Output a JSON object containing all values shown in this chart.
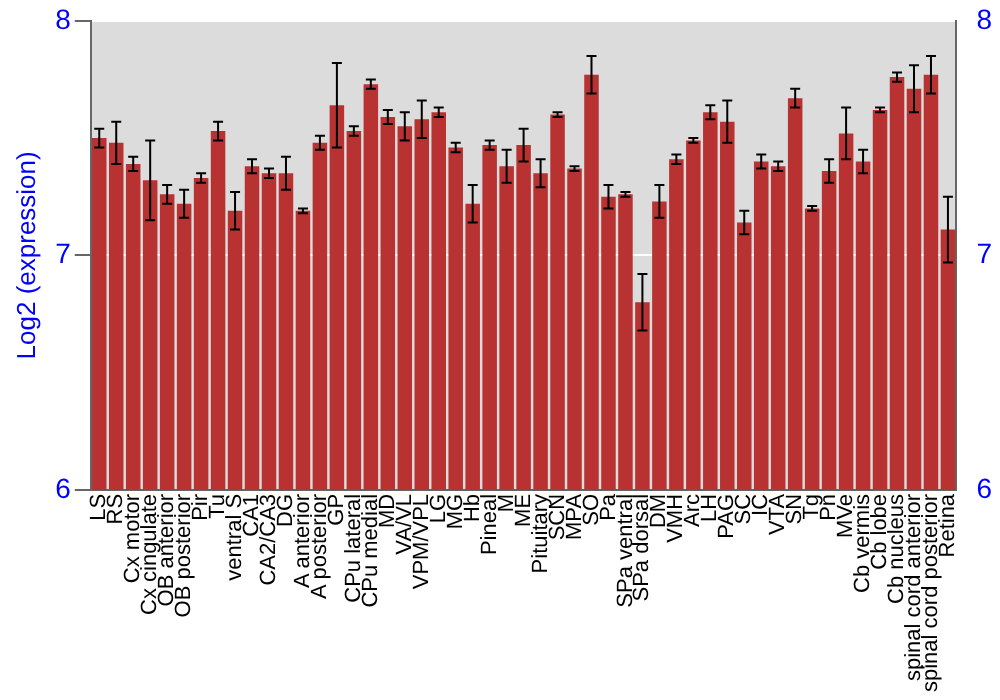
{
  "chart_data": {
    "type": "bar",
    "ylabel": "Log2 (expression)",
    "categories": [
      "LS",
      "RS",
      "Cx motor",
      "Cx cingulate",
      "OB anterior",
      "OB posterior",
      "Pir",
      "Tu",
      "ventral S",
      "CA1",
      "CA2/CA3",
      "DG",
      "A anterior",
      "A posterior",
      "GP",
      "CPu lateral",
      "CPu medial",
      "MD",
      "VA/VL",
      "VPM/VPL",
      "LG",
      "MG",
      "Hb",
      "Pineal",
      "M",
      "ME",
      "Pituitary",
      "SCN",
      "MPA",
      "SO",
      "Pa",
      "SPa ventral",
      "SPa dorsal",
      "DM",
      "VMH",
      "Arc",
      "LH",
      "PAG",
      "SC",
      "IC",
      "VTA",
      "SN",
      "Tg",
      "Pn",
      "MVe",
      "Cb vermis",
      "Cb lobe",
      "Cb nucleus",
      "spinal cord anterior",
      "spinal cord posterior",
      "Retina"
    ],
    "values": [
      7.5,
      7.48,
      7.39,
      7.32,
      7.26,
      7.22,
      7.33,
      7.53,
      7.19,
      7.38,
      7.35,
      7.35,
      7.19,
      7.48,
      7.64,
      7.53,
      7.73,
      7.59,
      7.55,
      7.58,
      7.61,
      7.46,
      7.22,
      7.47,
      7.38,
      7.47,
      7.35,
      7.6,
      7.37,
      7.77,
      7.25,
      7.26,
      6.8,
      7.23,
      7.41,
      7.49,
      7.61,
      7.57,
      7.14,
      7.4,
      7.38,
      7.67,
      7.2,
      7.36,
      7.52,
      7.4,
      7.62,
      7.76,
      7.71,
      7.77,
      7.11
    ],
    "errors": [
      0.04,
      0.09,
      0.03,
      0.17,
      0.04,
      0.06,
      0.02,
      0.04,
      0.08,
      0.03,
      0.02,
      0.07,
      0.01,
      0.03,
      0.18,
      0.02,
      0.02,
      0.03,
      0.06,
      0.08,
      0.02,
      0.02,
      0.08,
      0.02,
      0.07,
      0.07,
      0.06,
      0.01,
      0.01,
      0.08,
      0.05,
      0.01,
      0.12,
      0.07,
      0.02,
      0.01,
      0.03,
      0.09,
      0.05,
      0.03,
      0.02,
      0.04,
      0.01,
      0.05,
      0.11,
      0.05,
      0.01,
      0.02,
      0.1,
      0.08,
      0.14
    ],
    "color": "#b83232",
    "ylim": [
      6,
      8
    ],
    "yticks": [
      6,
      7,
      8
    ],
    "y2lim": [
      6,
      8
    ],
    "y2ticks": [
      6,
      7,
      8
    ],
    "grid": "y",
    "legend": false
  }
}
